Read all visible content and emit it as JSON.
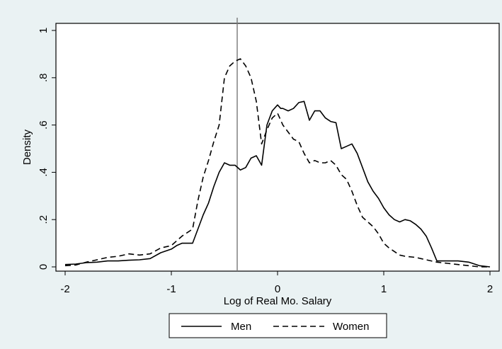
{
  "chart_data": {
    "type": "line",
    "title": "",
    "xlabel": "Log of Real Mo. Salary",
    "ylabel": "Density",
    "xlim": [
      -2,
      2
    ],
    "ylim": [
      0,
      1
    ],
    "xticks": [
      -2,
      -1,
      0,
      1,
      2
    ],
    "xtick_labels": [
      "-2",
      "-1",
      "0",
      "1",
      "2"
    ],
    "yticks": [
      0,
      0.2,
      0.4,
      0.6,
      0.8,
      1
    ],
    "ytick_labels": [
      "0",
      ".2",
      ".4",
      ".6",
      ".8",
      "1"
    ],
    "grid": false,
    "legend_position": "bottom",
    "reference_line_x": -0.38,
    "series": [
      {
        "name": "Men",
        "style": "solid",
        "color": "#000000",
        "x": [
          -2.0,
          -1.9,
          -1.8,
          -1.7,
          -1.6,
          -1.5,
          -1.4,
          -1.3,
          -1.2,
          -1.1,
          -1.0,
          -0.95,
          -0.9,
          -0.85,
          -0.8,
          -0.75,
          -0.7,
          -0.65,
          -0.6,
          -0.55,
          -0.5,
          -0.45,
          -0.4,
          -0.35,
          -0.3,
          -0.25,
          -0.2,
          -0.15,
          -0.1,
          -0.05,
          0.0,
          0.03,
          0.05,
          0.1,
          0.15,
          0.2,
          0.25,
          0.3,
          0.35,
          0.4,
          0.45,
          0.5,
          0.55,
          0.6,
          0.65,
          0.7,
          0.75,
          0.8,
          0.85,
          0.9,
          0.95,
          1.0,
          1.05,
          1.1,
          1.15,
          1.2,
          1.25,
          1.3,
          1.35,
          1.4,
          1.45,
          1.5,
          1.6,
          1.7,
          1.8,
          1.9,
          2.0
        ],
        "y": [
          0.01,
          0.012,
          0.018,
          0.02,
          0.025,
          0.025,
          0.028,
          0.03,
          0.035,
          0.06,
          0.075,
          0.09,
          0.1,
          0.1,
          0.1,
          0.16,
          0.22,
          0.27,
          0.34,
          0.4,
          0.44,
          0.43,
          0.43,
          0.41,
          0.42,
          0.46,
          0.47,
          0.43,
          0.6,
          0.66,
          0.685,
          0.67,
          0.67,
          0.66,
          0.67,
          0.695,
          0.7,
          0.62,
          0.66,
          0.66,
          0.63,
          0.615,
          0.61,
          0.5,
          0.51,
          0.52,
          0.48,
          0.42,
          0.36,
          0.32,
          0.29,
          0.25,
          0.22,
          0.2,
          0.19,
          0.2,
          0.195,
          0.18,
          0.16,
          0.13,
          0.08,
          0.025,
          0.025,
          0.025,
          0.02,
          0.005,
          0.0
        ]
      },
      {
        "name": "Women",
        "style": "dashed",
        "color": "#000000",
        "x": [
          -2.0,
          -1.9,
          -1.8,
          -1.7,
          -1.6,
          -1.5,
          -1.4,
          -1.3,
          -1.2,
          -1.1,
          -1.0,
          -0.9,
          -0.8,
          -0.75,
          -0.7,
          -0.65,
          -0.6,
          -0.55,
          -0.5,
          -0.45,
          -0.4,
          -0.35,
          -0.3,
          -0.25,
          -0.2,
          -0.15,
          -0.1,
          -0.05,
          0.0,
          0.05,
          0.1,
          0.15,
          0.2,
          0.25,
          0.3,
          0.35,
          0.4,
          0.45,
          0.5,
          0.55,
          0.6,
          0.65,
          0.7,
          0.75,
          0.8,
          0.85,
          0.9,
          0.95,
          1.0,
          1.05,
          1.1,
          1.15,
          1.2,
          1.3,
          1.4,
          1.5,
          1.6,
          1.7,
          1.8,
          1.9,
          2.0
        ],
        "y": [
          0.005,
          0.008,
          0.02,
          0.03,
          0.04,
          0.045,
          0.055,
          0.05,
          0.055,
          0.08,
          0.09,
          0.13,
          0.16,
          0.28,
          0.38,
          0.45,
          0.53,
          0.6,
          0.8,
          0.85,
          0.87,
          0.88,
          0.85,
          0.8,
          0.7,
          0.52,
          0.58,
          0.63,
          0.65,
          0.6,
          0.57,
          0.54,
          0.53,
          0.48,
          0.44,
          0.45,
          0.44,
          0.44,
          0.45,
          0.43,
          0.39,
          0.37,
          0.32,
          0.26,
          0.21,
          0.19,
          0.17,
          0.14,
          0.1,
          0.08,
          0.065,
          0.05,
          0.045,
          0.04,
          0.03,
          0.02,
          0.015,
          0.01,
          0.005,
          0.0,
          0.0
        ]
      }
    ]
  }
}
